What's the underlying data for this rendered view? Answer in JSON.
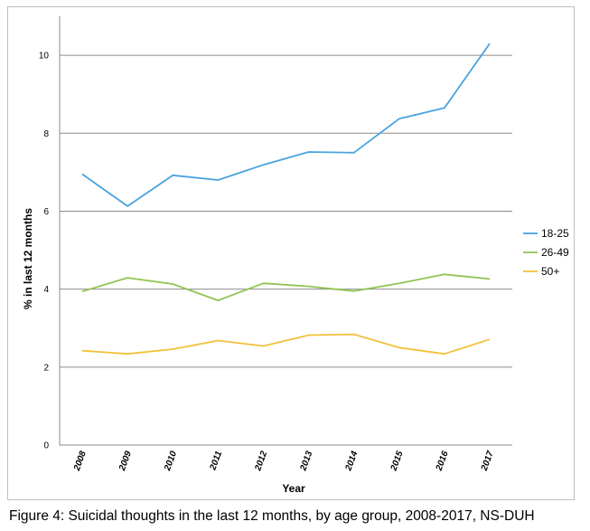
{
  "chart_data": {
    "type": "line",
    "x": [
      "2008",
      "2009",
      "2010",
      "2011",
      "2012",
      "2013",
      "2014",
      "2015",
      "2016",
      "2017"
    ],
    "series": [
      {
        "name": "18-25",
        "color": "#4aa3df",
        "values": [
          6.95,
          6.13,
          6.92,
          6.8,
          7.19,
          7.52,
          7.5,
          8.37,
          8.65,
          10.3
        ]
      },
      {
        "name": "26-49",
        "color": "#92c353",
        "values": [
          3.94,
          4.29,
          4.13,
          3.71,
          4.15,
          4.07,
          3.95,
          4.15,
          4.38,
          4.26
        ]
      },
      {
        "name": "50+",
        "color": "#f2c13a",
        "values": [
          2.42,
          2.34,
          2.46,
          2.68,
          2.54,
          2.82,
          2.84,
          2.5,
          2.34,
          2.71
        ]
      }
    ],
    "xlabel": "Year",
    "ylabel": "% in last 12 months",
    "ylim": [
      0,
      11
    ],
    "yticks": [
      0,
      2,
      4,
      6,
      8,
      10
    ],
    "grid": true,
    "legend_position": "right"
  },
  "caption": "Figure 4: Suicidal thoughts in the last 12 months, by age group, 2008-2017, NS-DUH"
}
